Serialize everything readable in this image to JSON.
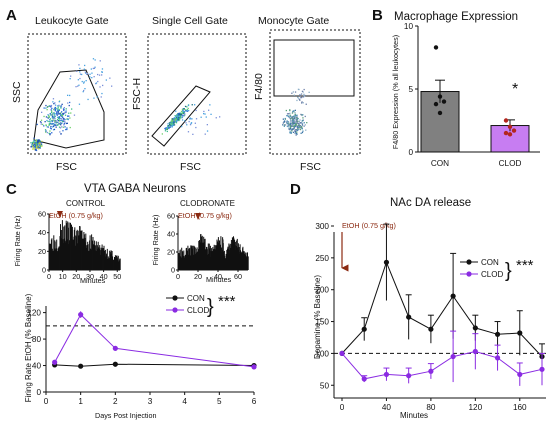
{
  "panels": {
    "A": {
      "letter": "A",
      "gates": [
        {
          "title": "Leukocyte Gate",
          "xlabel": "FSC",
          "ylabel": "SSC"
        },
        {
          "title": "Single Cell Gate",
          "xlabel": "FSC",
          "ylabel": "FSC-H"
        },
        {
          "title": "Monocyte Gate",
          "xlabel": "FSC",
          "ylabel": "F4/80"
        }
      ]
    },
    "B": {
      "letter": "B",
      "significance": "*"
    },
    "C": {
      "letter": "C",
      "section_title": "VTA GABA Neurons",
      "trace_control": {
        "title": "CONTROL",
        "annotation": "EtOH (0.75 g/kg)",
        "ylabel": "Firing Rate (Hz)",
        "xlabel": "Minutes"
      },
      "trace_clod": {
        "title": "CLODRONATE",
        "annotation": "EtOH (0.75 g/kg)",
        "ylabel": "Firing Rate (Hz)",
        "xlabel": "Minutes"
      },
      "significance": "***"
    },
    "D": {
      "letter": "D",
      "significance": "***"
    }
  },
  "colors": {
    "con": "#111111",
    "clod": "#8a2be2",
    "con_bar": "#808080",
    "clod_bar": "#c77df2",
    "etoh": "#8b2a12"
  },
  "chart_data": [
    {
      "id": "B",
      "type": "bar",
      "title": "Macrophage Expression",
      "ylabel": "F4/80 Expression (% all leukocytes)",
      "categories": [
        "CON",
        "CLOD"
      ],
      "values": [
        4.8,
        2.1
      ],
      "errors": [
        0.9,
        0.45
      ],
      "ylim": [
        0,
        10
      ],
      "yticks": [
        0,
        5,
        10
      ],
      "points": [
        [
          8.3,
          4.4,
          4.0,
          3.8,
          3.1
        ],
        [
          2.5,
          2.0,
          1.7,
          1.5,
          1.4
        ]
      ]
    },
    {
      "id": "C-control-trace",
      "type": "bar",
      "title": "CONTROL",
      "xlabel": "Minutes",
      "ylabel": "Firing Rate (Hz)",
      "xlim": [
        0,
        52
      ],
      "ylim": [
        0,
        60
      ],
      "xticks": [
        0,
        10,
        20,
        30,
        40,
        50
      ],
      "yticks": [
        0,
        20,
        40,
        60
      ],
      "annotation": {
        "text": "EtOH (0.75 g/kg)",
        "x": 8
      }
    },
    {
      "id": "C-clodronate-trace",
      "type": "bar",
      "title": "CLODRONATE",
      "xlabel": "Minutes",
      "ylabel": "Firing Rate (Hz)",
      "xlim": [
        0,
        70
      ],
      "ylim": [
        0,
        60
      ],
      "xticks": [
        0,
        20,
        40,
        60
      ],
      "yticks": [
        0,
        20,
        40,
        60
      ],
      "annotation": {
        "text": "EtOH (0.75 g/kg)",
        "x": 20
      }
    },
    {
      "id": "C",
      "type": "line",
      "xlabel": "Days Post Injection",
      "ylabel": "Firing Rate EtOH (% Baseline)",
      "xlim": [
        0,
        6
      ],
      "ylim": [
        0,
        130
      ],
      "xticks": [
        0,
        1,
        2,
        3,
        4,
        5,
        6
      ],
      "yticks": [
        0,
        40,
        80,
        120
      ],
      "baseline": 100,
      "series": [
        {
          "name": "CON",
          "x": [
            0.25,
            1,
            2,
            6
          ],
          "y": [
            41,
            39,
            42,
            40
          ],
          "err": [
            2,
            1.5,
            1.5,
            2
          ]
        },
        {
          "name": "CLOD",
          "x": [
            0.25,
            1,
            2,
            6
          ],
          "y": [
            45,
            117,
            66,
            38
          ],
          "err": [
            2,
            5,
            2,
            2
          ]
        }
      ]
    },
    {
      "id": "D",
      "type": "line",
      "title": "NAc DA release",
      "xlabel": "Minutes",
      "ylabel": "Dopamine (% Baseline)",
      "xlim": [
        0,
        180
      ],
      "ylim": [
        30,
        300
      ],
      "xticks": [
        0,
        40,
        80,
        120,
        160
      ],
      "yticks": [
        50,
        100,
        150,
        200,
        250,
        300
      ],
      "baseline": 100,
      "annotation": {
        "text": "EtOH (0.75 g/kg)",
        "x": 0
      },
      "series": [
        {
          "name": "CON",
          "x": [
            0,
            20,
            40,
            60,
            80,
            100,
            120,
            140,
            160,
            180
          ],
          "y": [
            100,
            138,
            243,
            157,
            138,
            190,
            140,
            130,
            132,
            95
          ],
          "err": [
            0,
            18,
            60,
            35,
            22,
            67,
            20,
            20,
            35,
            20
          ]
        },
        {
          "name": "CLOD",
          "x": [
            0,
            20,
            40,
            60,
            80,
            100,
            120,
            140,
            160,
            180
          ],
          "y": [
            100,
            60,
            67,
            65,
            72,
            95,
            103,
            93,
            67,
            75
          ],
          "err": [
            0,
            5,
            10,
            12,
            12,
            40,
            28,
            20,
            18,
            25
          ]
        }
      ]
    }
  ]
}
